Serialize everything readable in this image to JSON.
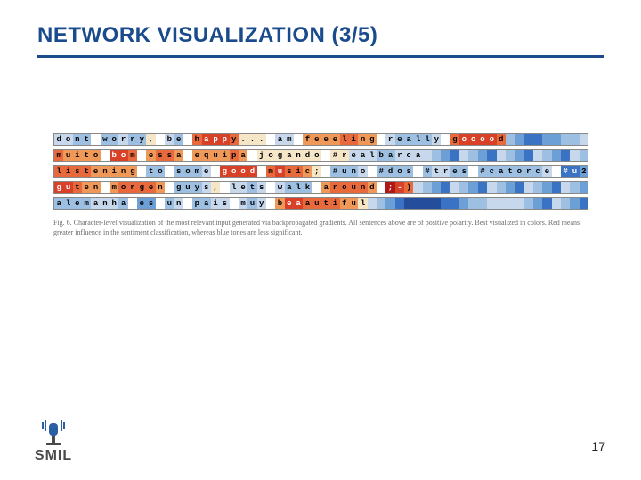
{
  "title": {
    "text": "NETWORK VISUALIZATION (3/5)",
    "color": "#1a4b8c"
  },
  "underline_color": "#1a4b8c",
  "page_number": "17",
  "logo_text": "SMIL",
  "logo_colors": {
    "stand": "#4a4a4a",
    "mic": "#2b5fa3",
    "bars": "#2b5fa3"
  },
  "caption": "Fig. 6.   Character-level visualization of the most relevant input generated via backpropagated gradients. All sentences above are of positive polarity. Best visualized in colors. Red means greater influence in the sentiment classification, whereas blue tones are less significant.",
  "palette": {
    "r4": "#b01818",
    "r3": "#d84028",
    "r2": "#e86a3c",
    "r1": "#f09858",
    "n": "#f6e6c8",
    "b1": "#c8d8ec",
    "b2": "#9cbfe2",
    "b3": "#6b9fd6",
    "b4": "#3a72c4",
    "b5": "#244e9c",
    "w": "#ffffff"
  },
  "rows": [
    {
      "text": "dont worry, be happy... am feeeling really gooood",
      "colors": [
        "b1",
        "b1",
        "b2",
        "b2",
        "w",
        "b2",
        "b2",
        "b1",
        "b2",
        "b2",
        "n",
        "w",
        "b1",
        "b2",
        "w",
        "r2",
        "r3",
        "r3",
        "r3",
        "r2",
        "n",
        "n",
        "n",
        "w",
        "b1",
        "b1",
        "w",
        "r1",
        "r1",
        "r1",
        "r1",
        "r2",
        "r2",
        "r1",
        "r1",
        "w",
        "b1",
        "b2",
        "b2",
        "b2",
        "b2",
        "b1",
        "w",
        "r2",
        "r3",
        "r3",
        "r3",
        "r3",
        "r2",
        "b2",
        "b3",
        "b4",
        "b4",
        "b3",
        "b3",
        "b2",
        "b2",
        "b1"
      ]
    },
    {
      "text": "muito bom essa equipa jogando #realbarca",
      "colors": [
        "r2",
        "r1",
        "r1",
        "r1",
        "r1",
        "w",
        "r3",
        "r3",
        "r2",
        "w",
        "r1",
        "r2",
        "r2",
        "r1",
        "w",
        "r1",
        "r1",
        "r1",
        "r1",
        "r2",
        "r1",
        "w",
        "n",
        "n",
        "n",
        "n",
        "n",
        "n",
        "n",
        "w",
        "n",
        "n",
        "b1",
        "b1",
        "b1",
        "b2",
        "b2",
        "b1",
        "b1",
        "b1"
      ]
    },
    {
      "text": "listening to some good music; #uno #dos #tres #catorce #u2",
      "colors": [
        "r2",
        "r2",
        "r2",
        "r2",
        "r1",
        "r1",
        "r1",
        "r1",
        "r1",
        "w",
        "b2",
        "b2",
        "w",
        "b2",
        "b2",
        "b2",
        "b1",
        "w",
        "r3",
        "r3",
        "r3",
        "r3",
        "w",
        "r2",
        "r3",
        "r2",
        "r2",
        "r1",
        "n",
        "w",
        "b2",
        "b2",
        "b2",
        "b1",
        "w",
        "b2",
        "b2",
        "b2",
        "b2",
        "w",
        "b2",
        "b1",
        "b1",
        "b2",
        "b2",
        "w",
        "b2",
        "b2",
        "b2",
        "b2",
        "b2",
        "b2",
        "b2",
        "b1",
        "w",
        "b4",
        "b4",
        "b3"
      ]
    },
    {
      "text": "guten morgen guys, lets walk around ;-)",
      "colors": [
        "r3",
        "r3",
        "r2",
        "r1",
        "r1",
        "w",
        "r1",
        "r2",
        "r2",
        "r2",
        "r2",
        "r1",
        "w",
        "b2",
        "b2",
        "b2",
        "b1",
        "n",
        "w",
        "b1",
        "b1",
        "b2",
        "b1",
        "w",
        "b1",
        "b2",
        "b2",
        "b2",
        "w",
        "r1",
        "r2",
        "r2",
        "r2",
        "r2",
        "r1",
        "w",
        "r4",
        "r3",
        "r2"
      ]
    },
    {
      "text": "alemanha es un pais muy beaautiful",
      "colors": [
        "b2",
        "b2",
        "b2",
        "b2",
        "b1",
        "b1",
        "b1",
        "b2",
        "w",
        "b3",
        "b3",
        "w",
        "b2",
        "b1",
        "w",
        "b2",
        "b2",
        "b1",
        "b1",
        "w",
        "b1",
        "b2",
        "b1",
        "w",
        "r1",
        "r3",
        "r3",
        "r2",
        "r2",
        "r2",
        "r2",
        "r1",
        "r1",
        "n",
        "b1",
        "b2",
        "b3",
        "b4",
        "b5",
        "b5",
        "b5",
        "b5",
        "b4",
        "b4",
        "b3",
        "b2",
        "b2",
        "b1",
        "b1",
        "b1"
      ]
    }
  ]
}
